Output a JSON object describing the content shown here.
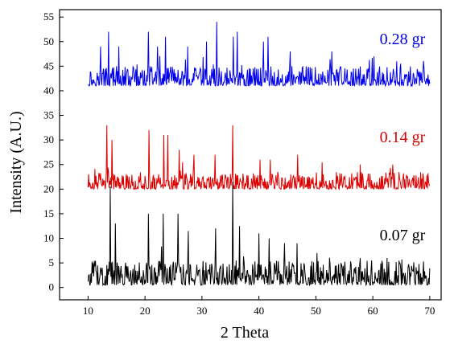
{
  "chart_data": {
    "type": "line",
    "title": "",
    "xlabel": "2 Theta",
    "ylabel": "Intensity (A.U.)",
    "xlim": [
      5,
      72
    ],
    "ylim": [
      -2.5,
      56.5
    ],
    "xticks": [
      10,
      20,
      30,
      40,
      50,
      60,
      70
    ],
    "yticks": [
      0,
      5,
      10,
      15,
      20,
      25,
      30,
      35,
      40,
      45,
      50,
      55
    ],
    "grid": false,
    "legend": "inline-right",
    "series": [
      {
        "name": "0.28 gr",
        "color": "#0000ee",
        "baseline": 41,
        "noise": 4,
        "x_range": [
          10,
          70
        ],
        "peaks": [
          [
            12.2,
            49
          ],
          [
            13.6,
            52
          ],
          [
            15.4,
            49
          ],
          [
            20.6,
            52
          ],
          [
            22.2,
            49
          ],
          [
            23.6,
            51
          ],
          [
            27.5,
            49
          ],
          [
            30.8,
            50
          ],
          [
            32.6,
            54
          ],
          [
            35.5,
            51
          ],
          [
            36.2,
            52
          ],
          [
            40.8,
            50
          ],
          [
            41.6,
            51
          ],
          [
            45.5,
            48
          ],
          [
            52.8,
            48
          ],
          [
            60.2,
            47
          ],
          [
            64.2,
            46
          ]
        ]
      },
      {
        "name": "0.14 gr",
        "color": "#dd0000",
        "baseline": 20,
        "noise": 3.5,
        "x_range": [
          10,
          70
        ],
        "peaks": [
          [
            13.3,
            33
          ],
          [
            14.2,
            30
          ],
          [
            20.7,
            32
          ],
          [
            23.3,
            31
          ],
          [
            24.0,
            31
          ],
          [
            26.0,
            28
          ],
          [
            28.6,
            27
          ],
          [
            32.3,
            27
          ],
          [
            35.4,
            33
          ],
          [
            40.2,
            26
          ],
          [
            42.0,
            26
          ],
          [
            46.8,
            27
          ],
          [
            57.8,
            25
          ],
          [
            63.5,
            25
          ]
        ]
      },
      {
        "name": "0.07 gr",
        "color": "#000000",
        "baseline": 0.5,
        "noise": 5,
        "x_range": [
          10,
          70
        ],
        "peaks": [
          [
            13.9,
            20.5
          ],
          [
            14.8,
            13
          ],
          [
            20.6,
            15
          ],
          [
            23.2,
            15
          ],
          [
            25.8,
            15
          ],
          [
            27.6,
            11.5
          ],
          [
            32.4,
            12
          ],
          [
            35.4,
            21.5
          ],
          [
            36.6,
            12.5
          ],
          [
            40.0,
            11
          ],
          [
            41.8,
            10
          ],
          [
            44.5,
            9
          ],
          [
            46.7,
            9
          ],
          [
            50.2,
            7
          ],
          [
            57.8,
            6
          ],
          [
            62.5,
            6
          ]
        ]
      }
    ]
  },
  "labels": {
    "series_top": "0.28 gr",
    "series_mid": "0.14 gr",
    "series_bottom": "0.07 gr"
  }
}
